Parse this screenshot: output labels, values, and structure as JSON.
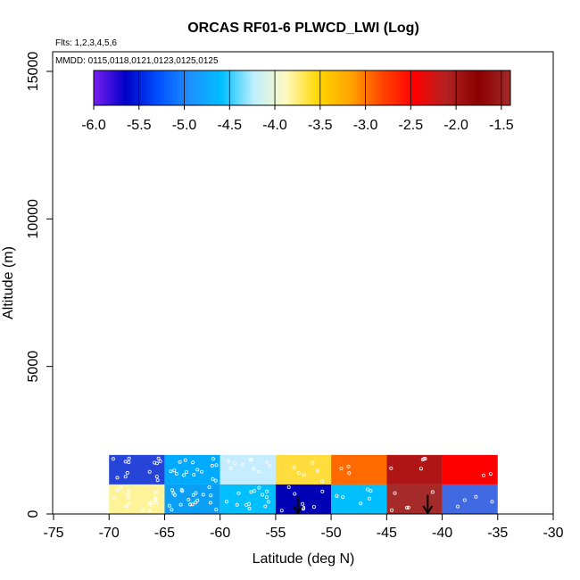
{
  "chart_data": {
    "type": "heatmap",
    "title": "ORCAS RF01-6 PLWCD_LWI (Log)",
    "subtitle_flights": "Flts: 1,2,3,4,5,6",
    "subtitle_dates": "MMDD: 0115,0118,0121,0123,0125,0125",
    "xlabel": "Latitude (deg N)",
    "ylabel": "Altitude (m)",
    "xlim": [
      -75,
      -30
    ],
    "ylim": [
      0,
      16000
    ],
    "xticks": [
      -75,
      -70,
      -65,
      -60,
      -55,
      -50,
      -45,
      -40,
      -35,
      -30
    ],
    "yticks": [
      0,
      5000,
      10000,
      15000
    ],
    "colorbar": {
      "range": [
        -6.0,
        -1.4
      ],
      "ticks": [
        -6.0,
        -5.5,
        -5.0,
        -4.5,
        -4.0,
        -3.5,
        -3.0,
        -2.5,
        -2.0,
        -1.5
      ],
      "tick_labels": [
        "-6.0",
        "-5.5",
        "-5.0",
        "-4.5",
        "-4.0",
        "-3.5",
        "-3.0",
        "-2.5",
        "-2.0",
        "-1.5"
      ],
      "colors": [
        "#7a1ff0",
        "#0000c8",
        "#0050ff",
        "#1e90ff",
        "#00bfff",
        "#bfefff",
        "#fffac0",
        "#ffd700",
        "#ffa500",
        "#ff4500",
        "#ff0000",
        "#b22222",
        "#8b0000",
        "#a52a2a"
      ]
    },
    "cells": [
      {
        "lat": [
          -70,
          -65
        ],
        "alt": [
          1000,
          2000
        ],
        "color": "#2645d8"
      },
      {
        "lat": [
          -65,
          -60
        ],
        "alt": [
          1000,
          2000
        ],
        "color": "#00aaff"
      },
      {
        "lat": [
          -60,
          -55
        ],
        "alt": [
          1000,
          2000
        ],
        "color": "#c6ecff"
      },
      {
        "lat": [
          -55,
          -50
        ],
        "alt": [
          1000,
          2000
        ],
        "color": "#ffdd3c"
      },
      {
        "lat": [
          -50,
          -45
        ],
        "alt": [
          1000,
          2000
        ],
        "color": "#ff6a00"
      },
      {
        "lat": [
          -45,
          -40
        ],
        "alt": [
          1000,
          2000
        ],
        "color": "#b01515"
      },
      {
        "lat": [
          -40,
          -35
        ],
        "alt": [
          1000,
          2000
        ],
        "color": "#ff0000"
      },
      {
        "lat": [
          -70,
          -65
        ],
        "alt": [
          0,
          1000
        ],
        "color": "#fff39a"
      },
      {
        "lat": [
          -65,
          -60
        ],
        "alt": [
          0,
          1000
        ],
        "color": "#0a9ef5"
      },
      {
        "lat": [
          -60,
          -55
        ],
        "alt": [
          0,
          1000
        ],
        "color": "#00bfff"
      },
      {
        "lat": [
          -55,
          -50
        ],
        "alt": [
          0,
          1000
        ],
        "color": "#0000b4"
      },
      {
        "lat": [
          -50,
          -45
        ],
        "alt": [
          0,
          1000
        ],
        "color": "#00bfff"
      },
      {
        "lat": [
          -45,
          -40
        ],
        "alt": [
          0,
          1000
        ],
        "color": "#a52a2a"
      },
      {
        "lat": [
          -40,
          -35
        ],
        "alt": [
          0,
          1000
        ],
        "color": "#4169e1"
      }
    ],
    "arrows": [
      {
        "lat": -53,
        "alt_top": 600,
        "alt_bottom": 0
      },
      {
        "lat": -41.3,
        "alt_top": 650,
        "alt_bottom": 0
      }
    ]
  }
}
